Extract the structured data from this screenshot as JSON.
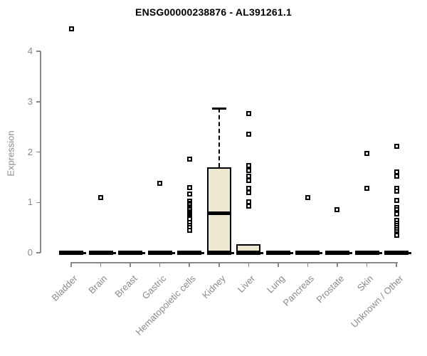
{
  "chart_data": {
    "type": "boxplot",
    "title": "ENSG00000238876 - AL391261.1",
    "ylabel": "Expression",
    "xlabel": "",
    "ylim": [
      0,
      4.5
    ],
    "yticks": [
      0,
      1,
      2,
      3,
      4
    ],
    "grid": false,
    "legend": "none",
    "box_fill_color": "#EDE7CF",
    "box_border_color": "#000000",
    "axis_color": "#888888",
    "tick_label_color": "#8a8a8a",
    "title_color": "#000000",
    "outlier_marker": "open-square",
    "categories": [
      "Bladder",
      "Brain",
      "Breast",
      "Gastric",
      "Hematopoietic cells",
      "Kidney",
      "Liver",
      "Lung",
      "Pancreas",
      "Prostate",
      "Skin",
      "Unknown / Other"
    ],
    "series": [
      {
        "name": "Bladder",
        "q1": 0,
        "median": 0,
        "q3": 0,
        "whisker_low": 0,
        "whisker_high": 0,
        "outliers": [
          4.45
        ]
      },
      {
        "name": "Brain",
        "q1": 0,
        "median": 0,
        "q3": 0,
        "whisker_low": 0,
        "whisker_high": 0,
        "outliers": [
          1.1
        ]
      },
      {
        "name": "Breast",
        "q1": 0,
        "median": 0,
        "q3": 0,
        "whisker_low": 0,
        "whisker_high": 0,
        "outliers": []
      },
      {
        "name": "Gastric",
        "q1": 0,
        "median": 0,
        "q3": 0,
        "whisker_low": 0,
        "whisker_high": 0,
        "outliers": [
          1.38
        ]
      },
      {
        "name": "Hematopoietic cells",
        "q1": 0,
        "median": 0,
        "q3": 0,
        "whisker_low": 0,
        "whisker_high": 0,
        "outliers": [
          1.86,
          1.3,
          1.16,
          1.03,
          0.99,
          0.95,
          0.91,
          0.88,
          0.85,
          0.82,
          0.79,
          0.76,
          0.73,
          0.7,
          0.67,
          0.6,
          0.55,
          0.5,
          0.45
        ]
      },
      {
        "name": "Kidney",
        "q1": 0,
        "median": 0.79,
        "q3": 1.7,
        "whisker_low": 0,
        "whisker_high": 2.87,
        "outliers": []
      },
      {
        "name": "Liver",
        "q1": 0,
        "median": 0,
        "q3": 0.17,
        "whisker_low": 0,
        "whisker_high": 0,
        "outliers": [
          2.77,
          2.35,
          1.73,
          1.63,
          1.52,
          1.43,
          1.28,
          1.19,
          1.01,
          0.92
        ]
      },
      {
        "name": "Lung",
        "q1": 0,
        "median": 0,
        "q3": 0,
        "whisker_low": 0,
        "whisker_high": 0,
        "outliers": []
      },
      {
        "name": "Pancreas",
        "q1": 0,
        "median": 0,
        "q3": 0,
        "whisker_low": 0,
        "whisker_high": 0,
        "outliers": [
          1.09
        ]
      },
      {
        "name": "Prostate",
        "q1": 0,
        "median": 0,
        "q3": 0,
        "whisker_low": 0,
        "whisker_high": 0,
        "outliers": [
          0.85
        ]
      },
      {
        "name": "Skin",
        "q1": 0,
        "median": 0,
        "q3": 0,
        "whisker_low": 0,
        "whisker_high": 0,
        "outliers": [
          1.97,
          1.28
        ]
      },
      {
        "name": "Unknown / Other",
        "q1": 0,
        "median": 0,
        "q3": 0,
        "whisker_low": 0,
        "whisker_high": 0,
        "outliers": [
          2.11,
          1.61,
          1.52,
          1.28,
          1.22,
          1.04,
          0.9,
          0.85,
          0.8,
          0.77,
          0.64,
          0.59,
          0.54,
          0.5,
          0.46,
          0.42,
          0.38,
          0.35
        ]
      }
    ]
  }
}
